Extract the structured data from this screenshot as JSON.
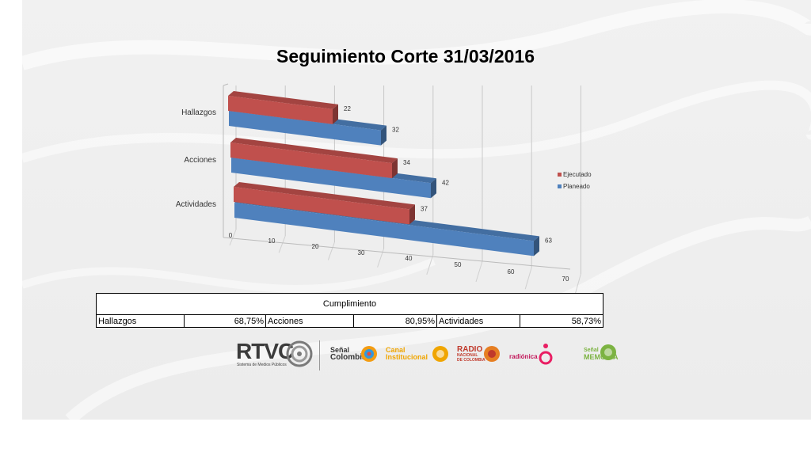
{
  "chart_data": {
    "type": "bar",
    "orientation": "horizontal",
    "title": "Seguimiento Corte 31/03/2016",
    "categories": [
      "Hallazgos",
      "Acciones",
      "Actividades"
    ],
    "series": [
      {
        "name": "Ejecutado",
        "values": [
          22,
          34,
          37
        ],
        "color": "#c0504d"
      },
      {
        "name": "Planeado",
        "values": [
          32,
          42,
          63
        ],
        "color": "#4f81bd"
      }
    ],
    "xlim": [
      0,
      70
    ],
    "xticks": [
      "0",
      "10",
      "20",
      "30",
      "40",
      "50",
      "60",
      "70"
    ],
    "grid": true,
    "legend": "right"
  },
  "table": {
    "header": "Cumplimiento",
    "cells": [
      "Hallazgos",
      "68,75%",
      "Acciones",
      "80,95%",
      "Actividades",
      "58,73%"
    ]
  },
  "logos": {
    "rtvc": "RTVC",
    "rtvc_sub": "Sistema de Medios Públicos",
    "senal_colombia": [
      "Señal",
      "Colombia"
    ],
    "canal_institucional": [
      "Canal",
      "Institucional"
    ],
    "radio_nacional": [
      "RADIO",
      "NACIONAL",
      "DE COLOMBIA"
    ],
    "radionica": "radiónica",
    "senal_memoria": [
      "Señal",
      "MEMORIA"
    ]
  }
}
